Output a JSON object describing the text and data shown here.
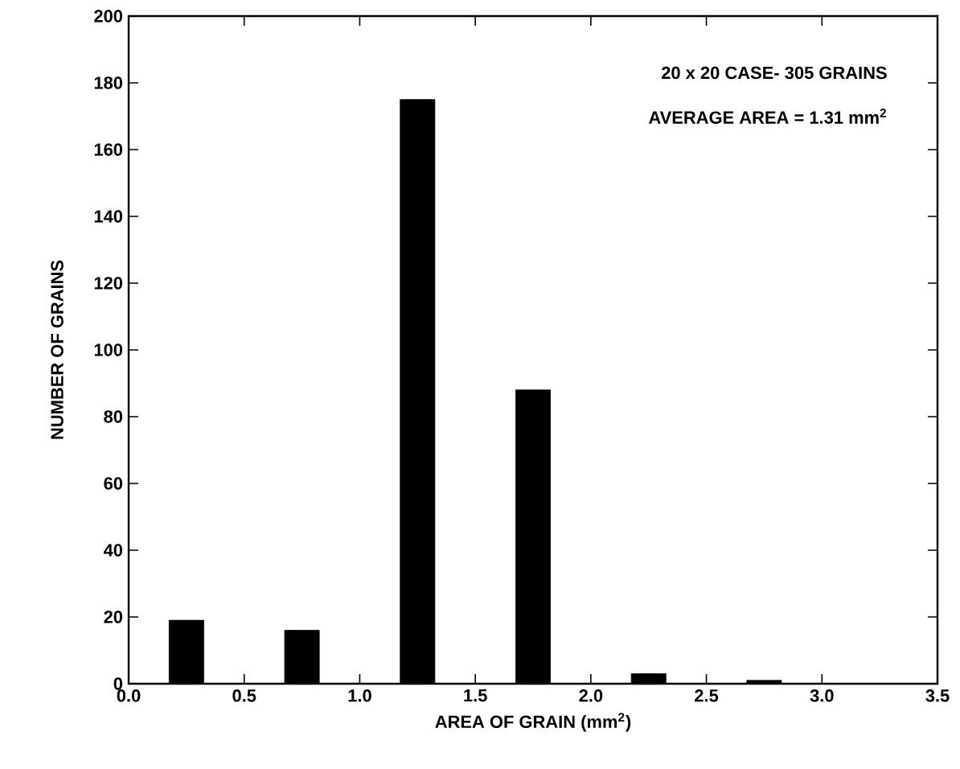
{
  "chart_data": {
    "type": "bar",
    "xlabel": "AREA OF GRAIN (mm$^{2}$)",
    "ylabel": "NUMBER OF GRAINS",
    "annotations": [
      "20 x 20 CASE- 305 GRAINS",
      "AVERAGE AREA = 1.31 mm$^{2}$"
    ],
    "x": [
      0.25,
      0.75,
      1.25,
      1.75,
      2.25,
      2.75
    ],
    "values": [
      19,
      16,
      175,
      88,
      3,
      1
    ],
    "color": "#000000",
    "xlim": [
      0,
      3.5
    ],
    "xticks": [
      {
        "value": 0,
        "label": "0.0"
      },
      0.5,
      {
        "value": 1,
        "label": "1.0"
      },
      1.5,
      {
        "value": 2,
        "label": "2.0"
      },
      2.5,
      {
        "value": 3,
        "label": "3.0"
      },
      3.5
    ],
    "ylim": [
      0,
      200
    ],
    "yticks": [
      0,
      20,
      40,
      60,
      80,
      100,
      120,
      140,
      160,
      180,
      200
    ],
    "grid": false
  }
}
